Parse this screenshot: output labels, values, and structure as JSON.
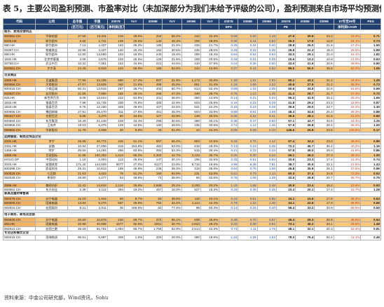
{
  "title": "表 5，主要公司盈利预测、市盈率对比（未加深部分为我们未给予评级的公司），盈利预测来自市场平均预测值）",
  "header": [
    "代码",
    "公司",
    "总市值",
    "市值",
    "2007E",
    "YoY",
    "2008E",
    "YoY",
    "2009E",
    "YoY",
    "2007E",
    "2008E",
    "2009E",
    "2007E",
    "2008E",
    "2009E",
    "07年至09年",
    "PEG"
  ],
  "header2": [
    "",
    "",
    "(百万元)",
    "(百万美元)",
    "净利润(百万元)",
    "",
    "",
    "",
    "",
    "",
    "EPS",
    "",
    "",
    "PE",
    "",
    "",
    "净利润CAGR",
    ""
  ],
  "rows": [
    {
      "t": "sec",
      "label": "超市、卖场及便利店"
    },
    {
      "c": [
        "600361.CH",
        "华联综超",
        "27.65",
        "10,311",
        "215",
        "28.5%",
        "334",
        "55.2%",
        "442",
        "32.3%",
        "0.58",
        "0.90",
        "1.18",
        "47.9",
        "30.9",
        "23.3",
        "43.3%",
        "0.71"
      ],
      "hl": true
    },
    {
      "c": [
        "8245.HK",
        "联华超市",
        "6.65",
        "2,741",
        "109",
        "20.6%",
        "142",
        "49.3%",
        "206",
        "28.8%",
        "0.36",
        "0.44",
        "0.53",
        "25.0",
        "17.9",
        "13.8",
        "34.1%",
        "0.73"
      ],
      "hl": true
    },
    {
      "c": [
        "980.HK",
        "联华超市",
        "7.13",
        "4,437",
        "163",
        "26.3%",
        "185",
        "21.5%",
        "225",
        "21.7%",
        "0.25",
        "0.34",
        "0.40",
        "28.8",
        "26.0",
        "21.6",
        "17.4%",
        "1.50"
      ]
    },
    {
      "c": [
        "00397.CH",
        "物美商业",
        "10.98",
        "4,437",
        "140",
        "20.4%",
        "182",
        "30.5%",
        "236",
        "28.0%",
        "0.25",
        "0.32",
        "0.39",
        "28.8",
        "22.3",
        "18.3",
        "25.0%",
        "0.89"
      ]
    },
    {
      "c": [
        "980.HK",
        "联华超市",
        "12.80",
        "13,690",
        "193",
        "18.0%",
        "240",
        "19.4%",
        "289",
        "18.4%",
        "0.64",
        "0.54",
        "0.63",
        "34.0",
        "29.1",
        "21.0",
        "18.1%",
        "1.82"
      ]
    },
    {
      "c": [
        "1832.HK",
        "北京京客隆",
        "4.09",
        "3,575",
        "102",
        "25.5%",
        "129",
        "21.5%",
        "158",
        "20.5%",
        "0.26",
        "0.31",
        "0.38",
        "15.6",
        "13.2",
        "10.8",
        "21.0%",
        "0.63"
      ]
    },
    {
      "c": [
        "00759.CH",
        "武汉中百",
        "10.32",
        "7,051",
        "152",
        "34.5%",
        "221",
        "44.5%",
        "310",
        "37.5%",
        "0.24",
        "0.35",
        "0.50",
        "43.0",
        "31.9",
        "20.6",
        "39.9%",
        "0.80"
      ]
    },
    {
      "c": [
        "600061.CH",
        "步步高",
        "24.25",
        "6,810",
        "104",
        "58.9%",
        "168",
        "62.8%",
        "244",
        "43.8%",
        "0.27",
        "0.44",
        "0.62",
        "89.5",
        "55.0",
        "38.8",
        "52.0%",
        "1.06"
      ],
      "hl": true
    },
    {
      "t": "sp"
    },
    {
      "t": "sec",
      "label": "百货商店"
    },
    {
      "c": [
        "3368.HK",
        "百盛集团",
        "77.95",
        "43,335",
        "660",
        "17.4%",
        "897",
        "31.9%",
        "1,173",
        "30.8%",
        "1.30",
        "1.81",
        "2.50",
        "60.1",
        "43.2",
        "31.2",
        "34.4%",
        "1.26"
      ],
      "hl": true
    },
    {
      "c": [
        "600694.CH",
        "大商股份",
        "47.07",
        "13,825",
        "340",
        "21.6%",
        "495",
        "45.6%",
        "651",
        "31.4%",
        "1.16",
        "1.69",
        "2.22",
        "40.6",
        "27.9",
        "21.2",
        "38.3%",
        "0.73"
      ],
      "hl": true
    },
    {
      "c": [
        "600415.CH",
        "小商品城",
        "50.41",
        "13,915",
        "267",
        "38.7%",
        "402",
        "50.7%",
        "614",
        "52.4%",
        "0.89",
        "1.34",
        "2.05",
        "50.6",
        "34.6",
        "22.6",
        "51.5%",
        "0.69"
      ]
    },
    {
      "c": [
        "600827.CH",
        "友阿股份",
        "21.55",
        "7,550",
        "182",
        "29.1%",
        "268",
        "47.2%",
        "348",
        "29.7%",
        "0.76",
        "1.12",
        "1.45",
        "41.4",
        "28.7",
        "21.7",
        "37.4%",
        "0.72"
      ],
      "hl": true
    },
    {
      "c": [
        "825.HK",
        "新世界百货",
        "8.09",
        "13,624",
        "242",
        "64.8%",
        "331",
        "36.6%",
        "380",
        "14.8%",
        "0.14",
        "0.21",
        "0.24",
        "56.3",
        "41.9",
        "33.1",
        "25.2%",
        "1.65"
      ]
    },
    {
      "c": [
        "1833.HK",
        "银泰百货",
        "7.89",
        "15,735",
        "336",
        "70.8%",
        "480",
        "42.9%",
        "603",
        "25.6%",
        "0.16",
        "0.23",
        "0.29",
        "41.8",
        "29.2",
        "23.3",
        "33.9%",
        "0.87"
      ]
    },
    {
      "c": [
        "1833.HK",
        "银泰百货",
        "6.75",
        "12,150",
        "349",
        "49.6%",
        "427",
        "22.5%",
        "521",
        "22.2%",
        "0.19",
        "0.23",
        "0.29",
        "35.6",
        "29.0",
        "23.7",
        "22.2%",
        "1.30"
      ]
    },
    {
      "c": [
        "600655.CH",
        "豫园商城",
        "27.81",
        "25,470",
        "311",
        "27.6%",
        "451",
        "45.0%",
        "604",
        "33.9%",
        "0.58",
        "0.81",
        "1.09",
        "48.3",
        "34.5",
        "25.3",
        "39.3%",
        "0.88"
      ]
    },
    {
      "c": [
        "000417.CH",
        "合肥百货",
        "8.86",
        "3,270",
        "80",
        "34.5%",
        "107",
        "32.9%",
        "139",
        "30.0%",
        "0.25",
        "0.32",
        "0.41",
        "35.6",
        "28.1",
        "21.6",
        "31.2%",
        "0.90"
      ],
      "hl": true
    },
    {
      "c": [
        "600693.CH",
        "东百集团",
        "19.49",
        "21,448",
        "229",
        "33.4%",
        "299",
        "30.6%",
        "389",
        "30.1%",
        "0.35",
        "0.47",
        "0.60",
        "57.1",
        "43.7",
        "33.6",
        "34.4%",
        "1.25"
      ]
    },
    {
      "c": [
        "600859.CH",
        "王府井",
        "19.03",
        "6,075",
        "129",
        "42.5%",
        "180",
        "39.5%",
        "235",
        "30.6%",
        "0.74",
        "1.12",
        "1.46",
        "57.9",
        "35.8",
        "28.4",
        "35.4%",
        "1.00"
      ]
    },
    {
      "c": [
        "000882.CH",
        "华联股份",
        "11.79",
        "2,938",
        "20",
        "9.8%",
        "33",
        "61.0%",
        "44",
        "34.3%",
        "0.05",
        "0.08",
        "0.10",
        "145.6",
        "25.8",
        "23.6",
        "146.6%",
        "0.17"
      ],
      "hl": true
    },
    {
      "t": "sp"
    },
    {
      "t": "sec",
      "label": "品牌服装、鞋类及饰品企业"
    },
    {
      "c": [
        "2331.HK",
        "李宁",
        "25.85",
        "26,772",
        "445",
        "51.1%",
        "697",
        "56.4%",
        "853",
        "22.5%",
        "0.45",
        "0.75",
        "1.12",
        "57.4",
        "34.3",
        "23.0",
        "38.4%",
        "0.89"
      ],
      "hl": true
    },
    {
      "c": [
        "2331.HK",
        "安踏",
        "10.84",
        "27,006",
        "315",
        "153.8%",
        "482",
        "53.0%",
        "619",
        "28.3%",
        "0.13",
        "0.19",
        "0.25",
        "72.2",
        "46.7",
        "36.4",
        "40.2%",
        "1.16"
      ]
    },
    {
      "c": [
        "1368.HK",
        "特步",
        "25.60",
        "14,294",
        "256",
        "83.8%",
        "392",
        "53.3%",
        "515",
        "30.4%",
        "0.21",
        "0.33",
        "0.43",
        "57.8",
        "36.0",
        "29.0",
        "41.8%",
        "0.86"
      ]
    },
    {
      "c": [
        "1880.HK",
        "百丽国际",
        "11.88",
        "100,283",
        "1,613",
        "65.2%",
        "2,302",
        "42.7%",
        "3,123",
        "35.7%",
        "0.20",
        "0.30",
        "0.44",
        "59.1",
        "39.2",
        "27.3",
        "39.1%",
        "1.00"
      ],
      "hl": true
    },
    {
      "c": [
        "HGUO.SP",
        "中国动向",
        "1.10",
        "2,004",
        "113",
        "25.5%",
        "147",
        "30.1%",
        "195",
        "32.5%",
        "0.33",
        "0.51",
        "0.63",
        "33.5",
        "23.3",
        "17.4",
        "31.4%",
        "0.74"
      ]
    },
    {
      "c": [
        "2020.HK",
        "安踏体育",
        "171.40",
        "144,629",
        "6577",
        "27.0%",
        "8127",
        "23.6%",
        "9,716",
        "19.6%",
        "4.98",
        "6.39",
        "7.81",
        "38.7",
        "30.9",
        "22.1",
        "21.6%",
        "1.43"
      ]
    },
    {
      "c": [
        "600398.CH",
        "凯诺科技",
        "25.31",
        "10,813",
        "169",
        "46.8%",
        "235",
        "39.3%",
        "319",
        "35.8%",
        "0.64",
        "0.76",
        "1.06",
        "45.8",
        "35.9",
        "26.1",
        "37.5%",
        "0.96"
      ]
    },
    {
      "c": [
        "000529.CH",
        "七匹狼",
        "21.63",
        "4,023",
        "78",
        "51.2%",
        "150",
        "92.8%",
        "231",
        "53.9%",
        "0.41",
        "0.79",
        "1.14",
        "60.3",
        "37.4",
        "24.8",
        "72.2%",
        "0.52"
      ],
      "hl": true
    },
    {
      "c": [
        "002029.CH",
        "希努尔",
        "28.80",
        "2,477",
        "53",
        "49.8%",
        "73",
        "38.9%",
        "96",
        "32.6%",
        "0.76",
        "1.05",
        "1.39",
        "32.5",
        "26.8",
        "20.7",
        "35.7%",
        "0.75"
      ]
    },
    {
      "t": "sp"
    },
    {
      "c": [
        "2698.HK",
        "魏桥纺织",
        "12.42",
        "14,834",
        "2,134",
        "26.6%",
        "2,668",
        "25.1%",
        "3,200",
        "20.2%",
        "1.19",
        "1.88",
        "2.48",
        "30.9",
        "23.4",
        "18.4",
        "22.6%",
        "0.93"
      ],
      "hl": true
    },
    {
      "c": [
        "600581.CH",
        "东方创业",
        "2.39",
        "3,112",
        "394",
        "19.2%",
        "457",
        "16.0%",
        "527",
        "15.3%",
        "0.34",
        "0.39",
        "0.45",
        "23.4",
        "20.1",
        "17.4",
        "15.7%",
        "1.28"
      ]
    },
    {
      "t": "sec",
      "label": "家具及建材零售商"
    },
    {
      "c": [
        "000478.CH",
        "苏宁电器",
        "15.00",
        "1,944",
        "60",
        "8.7%",
        "83",
        "38.6%",
        "116",
        "40.1%",
        "0.44",
        "0.61",
        "0.85",
        "34.1",
        "24.6",
        "17.6",
        "39.3%",
        "0.63"
      ],
      "hl": true
    },
    {
      "c": [
        "600000.CH",
        "国美电器",
        "13.84",
        "9,270",
        "587",
        "28.8%",
        "782",
        "33.2%",
        "1,114",
        "42.4%",
        "0.79",
        "1.22",
        "1.48",
        "34.1",
        "22.6",
        "17.0",
        "36.9%",
        "0.65"
      ],
      "hl": true
    },
    {
      "c": [
        "002024.CH",
        "宏图高科",
        "8.21",
        "2,011",
        "35",
        "168.6%",
        "62",
        "77.4%",
        "99",
        "60.3%",
        "0.14",
        "0.25",
        "0.40",
        "58.4",
        "33.2",
        "20.9",
        "68.5%",
        "0.50"
      ]
    },
    {
      "t": "sp"
    },
    {
      "t": "sec",
      "label": "电子商务、家电及连锁"
    },
    {
      "c": [
        "000829.CH",
        "苏宁电器",
        "20.60",
        "10,878",
        "240",
        "69.7%",
        "372",
        "55.1%",
        "508",
        "36.6%",
        "0.45",
        "0.70",
        "0.97",
        "45.4",
        "29.3",
        "20.9",
        "45.5%",
        "0.64"
      ],
      "hl": true
    },
    {
      "c": [
        "493.HK",
        "国美电器",
        "25.98",
        "40,906",
        "1577",
        "92.5%",
        "2061",
        "30.7%",
        "2,643",
        "28.2%",
        "0.20",
        "0.38",
        "0.52",
        "73.1",
        "45.2",
        "34.1",
        "29.5%",
        "1.48"
      ],
      "hl": true
    },
    {
      "c": [
        "002024.CH",
        "宏图三胞",
        "35.59",
        "55,761",
        "1,084",
        "65.7%",
        "1,766",
        "62.9%",
        "2,514",
        "42.3%",
        "0.74",
        "1.11",
        "1.75",
        "48.1",
        "32.1",
        "20.3",
        "52.3%",
        "0.61"
      ]
    },
    {
      "t": "sec",
      "label": "专业店和餐饮企业"
    },
    {
      "c": [
        "000415.CH",
        "渤海物流",
        "95.51",
        "8,697",
        "308",
        "1.5%",
        "320",
        "20.0%",
        "380",
        "18.8%",
        "1.22",
        "1.25",
        "1.53",
        "78.3",
        "76.4",
        "62.4",
        "11.1%",
        "2.46"
      ]
    }
  ],
  "source": "资料来源：中金公司研究部，Wind资讯，Sohu"
}
